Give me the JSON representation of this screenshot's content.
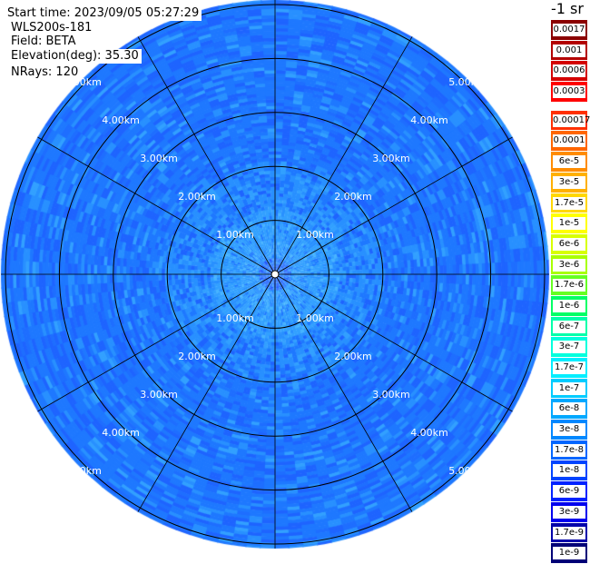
{
  "info": {
    "start_time": "Start time: 2023/09/05 05:27:29",
    "instrument": "WLS200s-181",
    "field": "Field: BETA",
    "elevation": "Elevation(deg): 35.30",
    "nrays": "NRays: 120"
  },
  "colorbar": {
    "units_label": "-1 sr",
    "top_group": [
      {
        "label": "0.0017",
        "color": "#8b0000"
      },
      {
        "label": "0.001",
        "color": "#b30000"
      },
      {
        "label": "0.0006",
        "color": "#d40000"
      },
      {
        "label": "0.0003",
        "color": "#ff0000"
      }
    ],
    "main_group": [
      {
        "label": "0.00017",
        "color": "#ff3000"
      },
      {
        "label": "0.0001",
        "color": "#ff6600"
      },
      {
        "label": "6e-5",
        "color": "#ff8c00"
      },
      {
        "label": "3e-5",
        "color": "#ffb000"
      },
      {
        "label": "1.7e-5",
        "color": "#ffd700"
      },
      {
        "label": "1e-5",
        "color": "#ffff00"
      },
      {
        "label": "6e-6",
        "color": "#d8ff00"
      },
      {
        "label": "3e-6",
        "color": "#a8ff00"
      },
      {
        "label": "1.7e-6",
        "color": "#66ff22"
      },
      {
        "label": "1e-6",
        "color": "#00ff66"
      },
      {
        "label": "6e-7",
        "color": "#00ffaa"
      },
      {
        "label": "3e-7",
        "color": "#00ffdd"
      },
      {
        "label": "1.7e-7",
        "color": "#00eeff"
      },
      {
        "label": "1e-7",
        "color": "#00ccff"
      },
      {
        "label": "6e-8",
        "color": "#00a8ff"
      },
      {
        "label": "3e-8",
        "color": "#0088ff"
      },
      {
        "label": "1.7e-8",
        "color": "#0066ff"
      },
      {
        "label": "1e-8",
        "color": "#0044ff"
      },
      {
        "label": "6e-9",
        "color": "#0022ff"
      },
      {
        "label": "3e-9",
        "color": "#0000ee"
      },
      {
        "label": "1.7e-9",
        "color": "#0000aa"
      },
      {
        "label": "1e-9",
        "color": "#000077"
      }
    ]
  },
  "chart_data": {
    "type": "heatmap",
    "title": "",
    "projection": "polar (PPI)",
    "range_rings_km": [
      1,
      2,
      3,
      4,
      5
    ],
    "ring_labels": [
      "1.00km",
      "2.00km",
      "3.00km",
      "4.00km",
      "5.00km"
    ],
    "azimuth_spokes_deg": [
      0,
      30,
      60,
      90,
      120,
      150,
      180,
      210,
      240,
      270,
      300,
      330
    ],
    "max_range_km": 5.0,
    "nrays": 120,
    "field": "BETA",
    "dominant_values": {
      "outer_range_km_3_to_5": "about 3e-8 to 6e-8",
      "inner_range_km_0_to_2": "about 1e-7",
      "near_origin": "mixed, up to about 1.7e-8"
    },
    "palette": {
      "ring_color": "#000000",
      "dominant_blue": "#1e78ff",
      "light_blue": "#46a8ff"
    }
  }
}
